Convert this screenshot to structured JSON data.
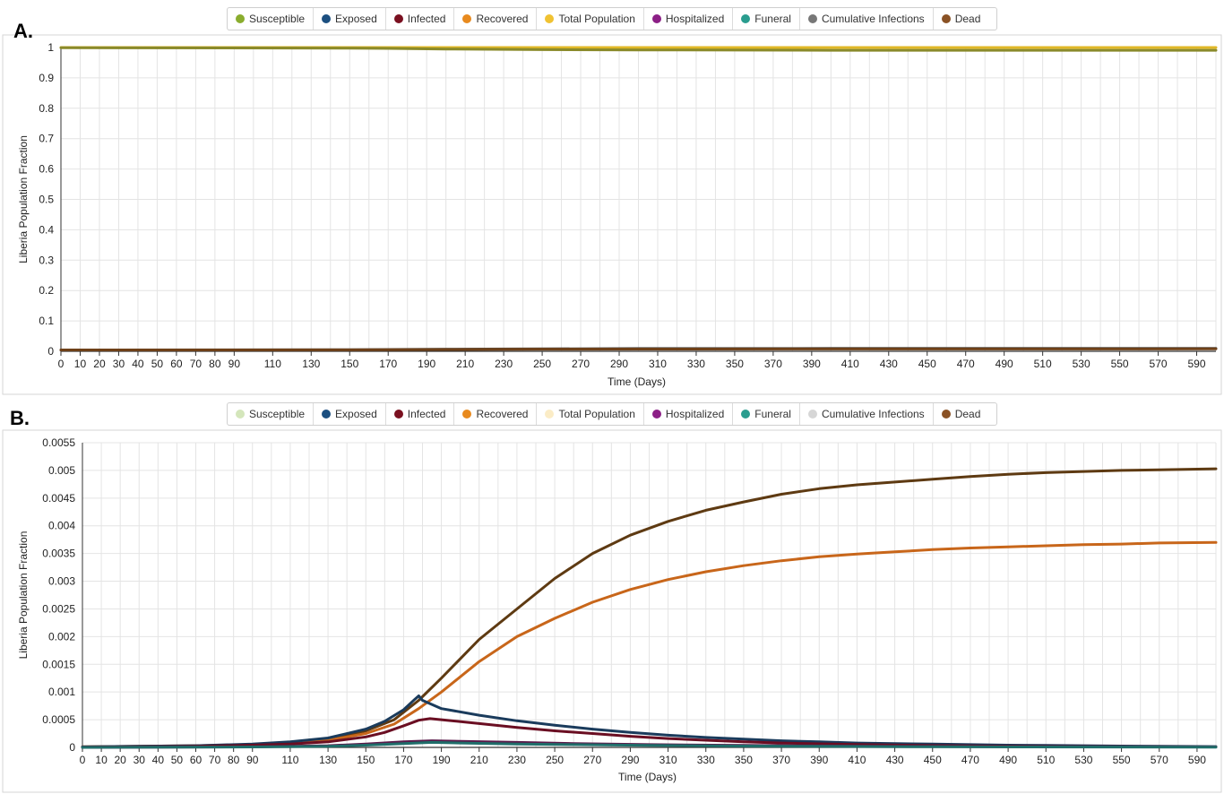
{
  "panel_labels": [
    "A.",
    "B."
  ],
  "series_colors": {
    "Susceptible": "#8aad2e",
    "Exposed": "#1c4f80",
    "Infected": "#7a1020",
    "Recovered": "#e88a1e",
    "Total Population": "#f0c232",
    "Hospitalized": "#8c1f86",
    "Funeral": "#2a9d8f",
    "Cumulative Infections": "#808080",
    "Dead": "#8a5225"
  },
  "chart_data": [
    {
      "type": "line",
      "panel": "A.",
      "xlabel": "Time (Days)",
      "ylabel": "Liberia Population Fraction",
      "xlim": [
        0,
        600
      ],
      "ylim": [
        0,
        1
      ],
      "xticks": [
        0,
        10,
        20,
        30,
        40,
        50,
        60,
        70,
        80,
        90,
        110,
        130,
        150,
        170,
        190,
        210,
        230,
        250,
        270,
        290,
        310,
        330,
        350,
        370,
        390,
        410,
        430,
        450,
        470,
        490,
        510,
        530,
        550,
        570,
        590
      ],
      "yticks": [
        0,
        0.1,
        0.2,
        0.3,
        0.4,
        0.5,
        0.6,
        0.7,
        0.8,
        0.9,
        1
      ],
      "ytick_labels": [
        "0",
        "0.1",
        "0.2",
        "0.3",
        "0.4",
        "0.5",
        "0.6",
        "0.7",
        "0.8",
        "0.9",
        "1"
      ],
      "grid": true,
      "legend_position": "top",
      "legend": [
        {
          "name": "Susceptible",
          "color": "#8aad2e",
          "active": true
        },
        {
          "name": "Exposed",
          "color": "#1c4f80",
          "active": true
        },
        {
          "name": "Infected",
          "color": "#7a1020",
          "active": true
        },
        {
          "name": "Recovered",
          "color": "#e88a1e",
          "active": true
        },
        {
          "name": "Total Population",
          "color": "#f0c232",
          "active": true
        },
        {
          "name": "Hospitalized",
          "color": "#8c1f86",
          "active": true
        },
        {
          "name": "Funeral",
          "color": "#2a9d8f",
          "active": true
        },
        {
          "name": "Cumulative Infections",
          "color": "#777777",
          "active": true
        },
        {
          "name": "Dead",
          "color": "#8a5225",
          "active": true
        }
      ],
      "series": [
        {
          "name": "Total Population",
          "color": "#e0b828",
          "x": [
            0,
            600
          ],
          "y": [
            1.0,
            1.0
          ]
        },
        {
          "name": "Susceptible",
          "color": "#8a8a2a",
          "x": [
            0,
            150,
            170,
            200,
            250,
            300,
            400,
            600
          ],
          "y": [
            0.999,
            0.998,
            0.997,
            0.995,
            0.993,
            0.992,
            0.991,
            0.991
          ]
        },
        {
          "name": "Cumulative Infections",
          "color": "#555555",
          "x": [
            0,
            150,
            170,
            200,
            250,
            300,
            400,
            600
          ],
          "y": [
            0.004,
            0.005,
            0.006,
            0.007,
            0.008,
            0.009,
            0.0095,
            0.0095
          ]
        },
        {
          "name": "Dead",
          "color": "#6e4018",
          "x": [
            0,
            150,
            170,
            200,
            250,
            300,
            400,
            600
          ],
          "y": [
            0.0045,
            0.0046,
            0.005,
            0.006,
            0.007,
            0.0075,
            0.0078,
            0.008
          ]
        }
      ]
    },
    {
      "type": "line",
      "panel": "B.",
      "xlabel": "Time (Days)",
      "ylabel": "Liberia Population Fraction",
      "xlim": [
        0,
        600
      ],
      "ylim": [
        0,
        0.0055
      ],
      "xticks": [
        0,
        10,
        20,
        30,
        40,
        50,
        60,
        70,
        80,
        90,
        110,
        130,
        150,
        170,
        190,
        210,
        230,
        250,
        270,
        290,
        310,
        330,
        350,
        370,
        390,
        410,
        430,
        450,
        470,
        490,
        510,
        530,
        550,
        570,
        590
      ],
      "yticks": [
        0,
        0.0005,
        0.001,
        0.0015,
        0.002,
        0.0025,
        0.003,
        0.0035,
        0.004,
        0.0045,
        0.005,
        0.0055
      ],
      "ytick_labels": [
        "0",
        "0.0005",
        "0.001",
        "0.0015",
        "0.002",
        "0.0025",
        "0.003",
        "0.0035",
        "0.004",
        "0.0045",
        "0.005",
        "0.0055"
      ],
      "grid": true,
      "legend_position": "top",
      "legend": [
        {
          "name": "Susceptible",
          "color": "#d4e6bb",
          "active": false
        },
        {
          "name": "Exposed",
          "color": "#1c4f80",
          "active": true
        },
        {
          "name": "Infected",
          "color": "#7a1020",
          "active": true
        },
        {
          "name": "Recovered",
          "color": "#e88a1e",
          "active": true
        },
        {
          "name": "Total Population",
          "color": "#fbecc6",
          "active": false
        },
        {
          "name": "Hospitalized",
          "color": "#8c1f86",
          "active": true
        },
        {
          "name": "Funeral",
          "color": "#2a9d8f",
          "active": true
        },
        {
          "name": "Cumulative Infections",
          "color": "#d6d6d6",
          "active": false
        },
        {
          "name": "Dead",
          "color": "#8a5225",
          "active": true
        }
      ],
      "series": [
        {
          "name": "Dead",
          "color": "#5e3a12",
          "x": [
            0,
            60,
            90,
            110,
            130,
            150,
            165,
            178,
            190,
            210,
            230,
            250,
            270,
            290,
            310,
            330,
            350,
            370,
            390,
            410,
            430,
            450,
            470,
            490,
            510,
            530,
            550,
            570,
            600
          ],
          "y": [
            1e-05,
            3e-05,
            5e-05,
            8e-05,
            0.00015,
            0.0003,
            0.0005,
            0.00085,
            0.00125,
            0.00195,
            0.0025,
            0.00305,
            0.0035,
            0.00383,
            0.00408,
            0.00428,
            0.00443,
            0.00457,
            0.00467,
            0.00474,
            0.00479,
            0.00484,
            0.00489,
            0.00493,
            0.00496,
            0.00498,
            0.005,
            0.00501,
            0.00503
          ]
        },
        {
          "name": "Recovered",
          "color": "#c8661a",
          "x": [
            0,
            60,
            90,
            110,
            130,
            150,
            165,
            178,
            190,
            210,
            230,
            250,
            270,
            290,
            310,
            330,
            350,
            370,
            390,
            410,
            430,
            450,
            470,
            490,
            510,
            530,
            550,
            570,
            600
          ],
          "y": [
            1e-05,
            2e-05,
            4e-05,
            7e-05,
            0.00013,
            0.00025,
            0.00042,
            0.0007,
            0.001,
            0.00155,
            0.002,
            0.00233,
            0.00262,
            0.00285,
            0.00303,
            0.00317,
            0.00328,
            0.00337,
            0.00344,
            0.00349,
            0.00353,
            0.00357,
            0.0036,
            0.00362,
            0.00364,
            0.00366,
            0.00367,
            0.00369,
            0.0037
          ]
        },
        {
          "name": "Exposed",
          "color": "#1a3b5c",
          "x": [
            0,
            60,
            90,
            110,
            130,
            150,
            160,
            170,
            176,
            178,
            180,
            190,
            210,
            230,
            250,
            270,
            290,
            310,
            330,
            350,
            370,
            390,
            410,
            430,
            450,
            470,
            490,
            510,
            530,
            550,
            570,
            600
          ],
          "y": [
            1e-05,
            3e-05,
            6e-05,
            0.0001,
            0.00017,
            0.00033,
            0.00047,
            0.00068,
            0.00087,
            0.00093,
            0.00085,
            0.0007,
            0.00058,
            0.00048,
            0.0004,
            0.00033,
            0.00027,
            0.00022,
            0.00018,
            0.00015,
            0.00012,
            0.0001,
            8e-05,
            7e-05,
            6e-05,
            5e-05,
            4e-05,
            3.5e-05,
            3e-05,
            2.5e-05,
            2e-05,
            1.5e-05
          ]
        },
        {
          "name": "Infected",
          "color": "#6a0e22",
          "x": [
            0,
            60,
            90,
            110,
            130,
            150,
            160,
            170,
            178,
            184,
            190,
            210,
            230,
            250,
            270,
            290,
            310,
            330,
            350,
            370,
            390,
            410,
            430,
            450,
            470,
            490,
            510,
            530,
            550,
            570,
            600
          ],
          "y": [
            5e-06,
            2e-05,
            4e-05,
            6e-05,
            0.0001,
            0.00019,
            0.00027,
            0.00039,
            0.00049,
            0.00052,
            0.0005,
            0.00043,
            0.00036,
            0.0003,
            0.00025,
            0.0002,
            0.00016,
            0.00013,
            0.0001,
            8e-05,
            6.5e-05,
            5.2e-05,
            4.2e-05,
            3.4e-05,
            2.7e-05,
            2.2e-05,
            1.8e-05,
            1.5e-05,
            1.2e-05,
            1e-05,
            8e-06
          ]
        },
        {
          "name": "Hospitalized",
          "color": "#5a1a4a",
          "x": [
            0,
            90,
            130,
            150,
            170,
            185,
            200,
            230,
            260,
            300,
            350,
            400,
            450,
            500,
            600
          ],
          "y": [
            0,
            1e-05,
            3e-05,
            6e-05,
            0.0001,
            0.00012,
            0.00011,
            9e-05,
            7e-05,
            5e-05,
            3.5e-05,
            2.5e-05,
            1.8e-05,
            1.2e-05,
            8e-06
          ]
        },
        {
          "name": "Funeral",
          "color": "#1f6e6a",
          "x": [
            0,
            90,
            130,
            150,
            170,
            185,
            200,
            230,
            260,
            300,
            350,
            400,
            450,
            500,
            600
          ],
          "y": [
            0,
            8e-06,
            2e-05,
            4e-05,
            7e-05,
            9e-05,
            8e-05,
            6e-05,
            5e-05,
            3.5e-05,
            2.5e-05,
            1.8e-05,
            1.2e-05,
            8e-06,
            5e-06
          ]
        }
      ]
    }
  ]
}
